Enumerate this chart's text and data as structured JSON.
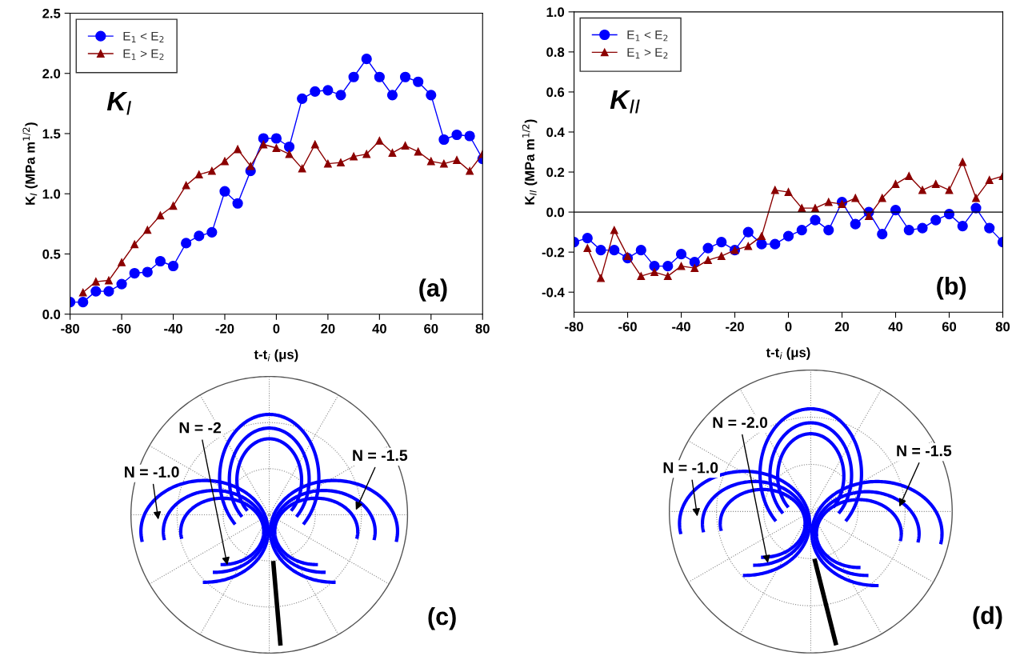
{
  "chart_data": [
    {
      "type": "line",
      "xlabel": "t-t$_{i}$ (μs)",
      "ylabel": "K$_{I}$ (MPa m$^{1/2}$)",
      "x": [
        -80,
        -75,
        -70,
        -65,
        -60,
        -55,
        -50,
        -45,
        -40,
        -35,
        -30,
        -25,
        -20,
        -15,
        -10,
        -5,
        0,
        5,
        10,
        15,
        20,
        25,
        30,
        35,
        40,
        45,
        50,
        55,
        60,
        65,
        70,
        75,
        80
      ],
      "series": [
        {
          "name": "E$_{1}$ < E$_{2}$",
          "color": "#0000ff",
          "marker": "circle",
          "values": [
            0.1,
            0.1,
            0.19,
            0.19,
            0.25,
            0.34,
            0.35,
            0.44,
            0.4,
            0.59,
            0.65,
            0.68,
            1.02,
            0.92,
            1.19,
            1.46,
            1.46,
            1.39,
            1.79,
            1.85,
            1.86,
            1.82,
            1.97,
            2.12,
            1.97,
            1.82,
            1.97,
            1.93,
            1.82,
            1.45,
            1.49,
            1.48,
            1.29
          ]
        },
        {
          "name": "E$_{1}$ > E$_{2}$",
          "color": "#8b0000",
          "marker": "triangle",
          "values": [
            null,
            0.18,
            0.27,
            0.28,
            0.43,
            0.58,
            0.7,
            0.82,
            0.9,
            1.07,
            1.16,
            1.19,
            1.27,
            1.37,
            1.23,
            1.41,
            1.38,
            1.33,
            1.21,
            1.41,
            1.25,
            1.26,
            1.31,
            1.33,
            1.44,
            1.34,
            1.4,
            1.35,
            1.27,
            1.25,
            1.28,
            1.19,
            1.33
          ]
        }
      ],
      "xlim": [
        -80,
        80
      ],
      "xticks": [
        -80,
        -60,
        -40,
        -20,
        0,
        20,
        40,
        60,
        80
      ],
      "ylim": [
        0.0,
        2.5
      ],
      "yticks": [
        {
          "value": 0,
          "label": "0.0"
        },
        0.5,
        {
          "value": 1,
          "label": "1.0"
        },
        1.5,
        {
          "value": 2,
          "label": "2.0"
        },
        2.5
      ],
      "annotations": [
        "K$_{I}$",
        "(a)"
      ],
      "legend": "top left",
      "grid": false,
      "line_style": "solid"
    },
    {
      "type": "line",
      "xlabel": "t-t$_{i}$ (μs)",
      "ylabel": "K$_{II}$ (MPa m$^{1/2}$)",
      "x": [
        -80,
        -75,
        -70,
        -65,
        -60,
        -55,
        -50,
        -45,
        -40,
        -35,
        -30,
        -25,
        -20,
        -15,
        -10,
        -5,
        0,
        5,
        10,
        15,
        20,
        25,
        30,
        35,
        40,
        45,
        50,
        55,
        60,
        65,
        70,
        75,
        80
      ],
      "series": [
        {
          "name": "E$_{1}$ < E$_{2}$",
          "color": "#0000ff",
          "marker": "circle",
          "values": [
            -0.15,
            -0.13,
            -0.19,
            -0.19,
            -0.23,
            -0.19,
            -0.27,
            -0.27,
            -0.21,
            -0.25,
            -0.18,
            -0.15,
            -0.19,
            -0.1,
            -0.16,
            -0.16,
            -0.12,
            -0.09,
            -0.04,
            -0.09,
            0.05,
            -0.06,
            0.0,
            -0.11,
            0.01,
            -0.09,
            -0.08,
            -0.04,
            -0.01,
            -0.07,
            0.02,
            -0.08,
            -0.15
          ]
        },
        {
          "name": "E$_{1}$ > E$_{2}$",
          "color": "#8b0000",
          "marker": "triangle",
          "values": [
            null,
            -0.18,
            -0.33,
            -0.09,
            -0.22,
            -0.32,
            -0.3,
            -0.32,
            -0.27,
            -0.28,
            -0.24,
            -0.22,
            -0.19,
            -0.17,
            -0.12,
            0.11,
            0.1,
            0.02,
            0.02,
            0.05,
            0.04,
            0.07,
            -0.02,
            0.07,
            0.14,
            0.18,
            0.11,
            0.14,
            0.11,
            0.25,
            0.07,
            0.16,
            0.18
          ]
        }
      ],
      "xlim": [
        -80,
        80
      ],
      "xticks": [
        -80,
        -60,
        -40,
        -20,
        0,
        20,
        40,
        60,
        80
      ],
      "ylim": [
        -0.5,
        1.0
      ],
      "yticks": [
        -0.4,
        -0.2,
        {
          "value": 0,
          "label": "0.0"
        },
        0.2,
        0.4,
        0.6,
        0.8,
        {
          "value": 1,
          "label": "1.0"
        }
      ],
      "ref_lines": [
        {
          "axis": "y",
          "value": 0.0,
          "color": "#000000"
        }
      ],
      "annotations": [
        "K$_{II}$",
        "(b)"
      ],
      "legend": "top left",
      "grid": false,
      "line_style": "solid"
    },
    {
      "type": "other",
      "annotations": [
        "N = -1.0",
        "N = -2",
        "N = -1.5",
        "(c)"
      ]
    },
    {
      "type": "other",
      "annotations": [
        "N = -1.0",
        "N = -2.0",
        "N = -1.5",
        "(d)"
      ]
    }
  ]
}
